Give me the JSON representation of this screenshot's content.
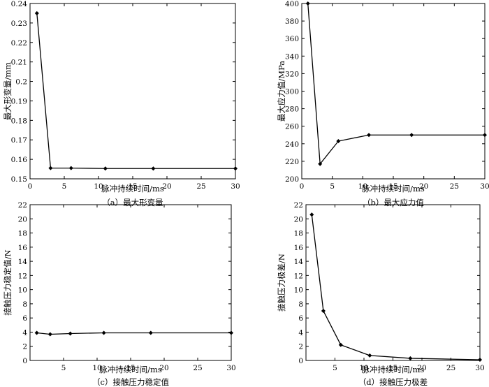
{
  "chart_data": [
    {
      "type": "line",
      "caption": "（a）最大形变量",
      "xlabel": "脉冲持续时间/ms",
      "ylabel": "最大形变量/mm",
      "xlim": [
        0,
        30
      ],
      "ylim": [
        0.15,
        0.24
      ],
      "xticks": [
        0,
        5,
        10,
        15,
        20,
        25,
        30
      ],
      "yticks": [
        0.15,
        0.16,
        0.17,
        0.18,
        0.19,
        0.2,
        0.21,
        0.22,
        0.23,
        0.24
      ],
      "grid": false,
      "x": [
        1,
        3,
        6,
        11,
        18,
        30
      ],
      "y": [
        0.235,
        0.1555,
        0.1555,
        0.1553,
        0.1553,
        0.1553
      ]
    },
    {
      "type": "line",
      "caption": "（b）最大应力值",
      "xlabel": "脉冲持续时间/ms",
      "ylabel": "最大应力值/MPa",
      "xlim": [
        0,
        30
      ],
      "ylim": [
        200,
        400
      ],
      "xticks": [
        0,
        5,
        10,
        15,
        20,
        25,
        30
      ],
      "yticks": [
        200,
        220,
        240,
        260,
        280,
        300,
        320,
        340,
        360,
        380,
        400
      ],
      "grid": false,
      "x": [
        1,
        3,
        6,
        11,
        18,
        30
      ],
      "y": [
        400,
        217,
        243,
        250,
        250,
        250
      ]
    },
    {
      "type": "line",
      "caption": "（c）接触压力稳定值",
      "xlabel": "脉冲持续时间/ms",
      "ylabel": "接触压力稳定值/N",
      "xlim": [
        0,
        30
      ],
      "ylim": [
        0,
        22
      ],
      "xticks": [
        5,
        10,
        15,
        20,
        25,
        30
      ],
      "yticks": [
        0,
        2,
        4,
        6,
        8,
        10,
        12,
        14,
        16,
        18,
        20,
        22
      ],
      "grid": false,
      "x": [
        1,
        3,
        6,
        11,
        18,
        30
      ],
      "y": [
        3.9,
        3.7,
        3.8,
        3.9,
        3.9,
        3.9
      ]
    },
    {
      "type": "line",
      "caption": "（d）接触压力极差",
      "xlabel": "脉冲持续时间/ms",
      "ylabel": "接触压力极差/N",
      "xlim": [
        0,
        30
      ],
      "ylim": [
        0,
        22
      ],
      "xticks": [
        5,
        10,
        15,
        20,
        25,
        30
      ],
      "yticks": [
        0,
        2,
        4,
        6,
        8,
        10,
        12,
        14,
        16,
        18,
        20,
        22
      ],
      "grid": false,
      "x": [
        1,
        3,
        6,
        11,
        18,
        30
      ],
      "y": [
        20.6,
        7.0,
        2.2,
        0.7,
        0.3,
        0.1
      ]
    }
  ]
}
